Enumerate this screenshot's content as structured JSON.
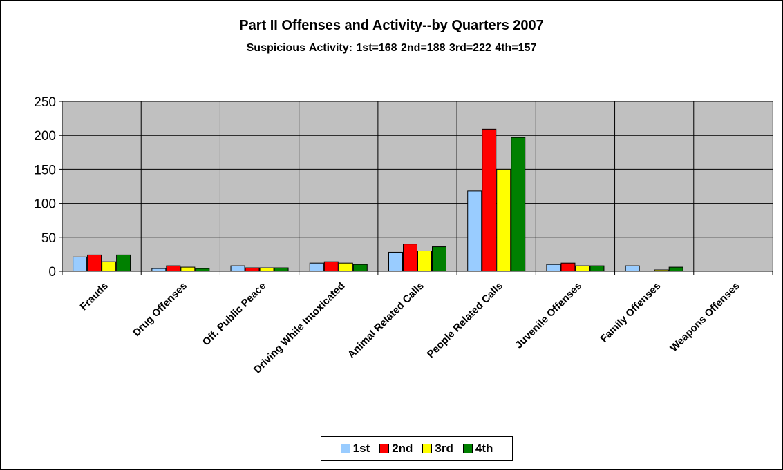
{
  "chart_data": {
    "type": "bar",
    "title": "Part II Offenses and Activity--by Quarters 2007",
    "subtitle": "Suspicious Activity: 1st=168    2nd=188    3rd=222    4th=157",
    "categories": [
      "Frauds",
      "Drug Offenses",
      "Off. Public Peace",
      "Driving While Intoxicated",
      "Animal Related Calls",
      "People Related Calls",
      "Juvenile Offenses",
      "Family Offenses",
      "Weapons Offenses"
    ],
    "series": [
      {
        "name": "1st",
        "color": "#99ccff",
        "values": [
          21,
          4,
          8,
          12,
          28,
          118,
          10,
          8,
          0
        ]
      },
      {
        "name": "2nd",
        "color": "#ff0000",
        "values": [
          24,
          8,
          5,
          14,
          40,
          209,
          12,
          0,
          0
        ]
      },
      {
        "name": "3rd",
        "color": "#ffff00",
        "values": [
          14,
          6,
          5,
          12,
          30,
          150,
          8,
          2,
          0
        ]
      },
      {
        "name": "4th",
        "color": "#008000",
        "values": [
          24,
          4,
          5,
          10,
          36,
          197,
          8,
          6,
          0
        ]
      }
    ],
    "ylim": [
      0,
      250
    ],
    "yticks": [
      0,
      50,
      100,
      150,
      200,
      250
    ],
    "grid": true,
    "plot_background": "#c0c0c0",
    "legend_position": "bottom"
  }
}
